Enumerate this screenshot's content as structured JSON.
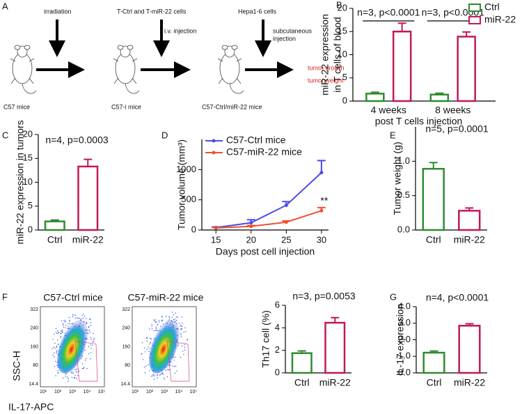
{
  "diagram": {
    "label": "A",
    "irradiation": "irradiation",
    "cells": "T-Ctrl and T-miR-22 cells",
    "iv": "i.v. injection",
    "hepa": "Hepa1-6 cells",
    "subcutaneous": [
      "subcutaneous",
      "injection"
    ],
    "outcomes": [
      "tumor growth",
      "tumor weight"
    ],
    "mice": [
      "C57 mice",
      "C57-i mice",
      "C57-Ctrl/miR-22 mice"
    ]
  },
  "flow": {
    "label": "F",
    "titles": [
      "C57-Ctrl mice",
      "C57-miR-22 mice"
    ],
    "ylabel": "SSC-H",
    "xlabel": "IL-17-APC",
    "yticks": [
      "14.4",
      "80",
      "160",
      "240",
      "322"
    ],
    "xticks": [
      "10¹",
      "10²",
      "10³",
      "10⁴",
      "10⁵"
    ]
  },
  "chart_data": [
    {
      "label": "B",
      "type": "grouped_bar",
      "ylabel": [
        "miR-22 expression",
        "in T cells of blood"
      ],
      "xlabel": "post T cells injection",
      "categories": [
        "4 weeks",
        "8 weeks"
      ],
      "series": [
        {
          "name": "Ctrl",
          "color": "#2e8b2e",
          "values": [
            1.6,
            1.4
          ],
          "errors": [
            0.3,
            0.3
          ]
        },
        {
          "name": "miR-22",
          "color": "#c2185b",
          "values": [
            15,
            13.9
          ],
          "errors": [
            1.8,
            1.0
          ]
        }
      ],
      "annotations": [
        "n=3, p<0.0001",
        "n=3, p<0.0001"
      ],
      "ylim": [
        0,
        20
      ],
      "yticks": [
        0,
        5,
        10,
        15,
        20
      ],
      "legend": "upper right"
    },
    {
      "label": "C",
      "type": "bar",
      "ylabel": "miR-22 expression in tumors",
      "categories": [
        "Ctrl",
        "miR-22"
      ],
      "values": [
        1.8,
        13.3
      ],
      "errors": [
        0.3,
        1.5
      ],
      "colors": [
        "#2e8b2e",
        "#c2185b"
      ],
      "annotation": "n=4, p=0.0003",
      "ylim": [
        0,
        20
      ],
      "yticks": [
        0,
        5,
        10,
        15,
        20
      ]
    },
    {
      "label": "D",
      "type": "line",
      "ylabel": "Tumor volume (mm³)",
      "xlabel": "Days post cell injection",
      "x": [
        15,
        20,
        25,
        30
      ],
      "series": [
        {
          "name": "C57-Ctrl mice",
          "color": "#4a4ae8",
          "values": [
            40,
            120,
            410,
            950
          ],
          "errors": [
            10,
            50,
            60,
            200
          ]
        },
        {
          "name": "C57-miR-22 mice",
          "color": "#f05030",
          "values": [
            35,
            60,
            130,
            320
          ],
          "errors": [
            5,
            15,
            20,
            50
          ]
        }
      ],
      "annotation": "**",
      "xlim": [
        13,
        31
      ],
      "xticks": [
        15,
        20,
        25,
        30
      ],
      "ylim": [
        0,
        1500
      ],
      "yticks": [
        0,
        500,
        1000
      ],
      "legend": "upper left"
    },
    {
      "label": "E",
      "type": "bar",
      "ylabel": "Tumor weight (g)",
      "categories": [
        "Ctrl",
        "miR-22"
      ],
      "values": [
        0.89,
        0.28
      ],
      "errors": [
        0.09,
        0.04
      ],
      "colors": [
        "#2e8b2e",
        "#c2185b"
      ],
      "annotation": "n=5, p=0.0001",
      "ylim": [
        0,
        1.5
      ],
      "yticks": [
        {
          "value": 0,
          "label": "0.0"
        },
        {
          "value": 0.5,
          "label": "0.5"
        },
        {
          "value": 1,
          "label": "1.0"
        }
      ]
    },
    {
      "type": "bar",
      "ylabel": "Th17 cell (%)",
      "categories": [
        "Ctrl",
        "miR-22"
      ],
      "values": [
        1.75,
        4.45
      ],
      "errors": [
        0.2,
        0.45
      ],
      "colors": [
        "#2e8b2e",
        "#c2185b"
      ],
      "annotation": "n=3, p=0.0053",
      "ylim": [
        0,
        6
      ],
      "yticks": [
        0,
        2,
        4,
        6
      ]
    },
    {
      "label": "G",
      "type": "bar",
      "ylabel": "IL-17 expression",
      "categories": [
        "Ctrl",
        "miR-22"
      ],
      "values": [
        1.22,
        2.85
      ],
      "errors": [
        0.1,
        0.12
      ],
      "colors": [
        "#2e8b2e",
        "#c2185b"
      ],
      "annotation": "n=4, p<0.0001",
      "ylim": [
        0,
        4
      ],
      "yticks": [
        {
          "value": 0,
          "label": "0.0"
        },
        {
          "value": 1,
          "label": "1.0"
        },
        {
          "value": 2,
          "label": "2.0"
        },
        {
          "value": 3,
          "label": "3.0"
        },
        {
          "value": 4,
          "label": "4.0"
        }
      ]
    }
  ]
}
